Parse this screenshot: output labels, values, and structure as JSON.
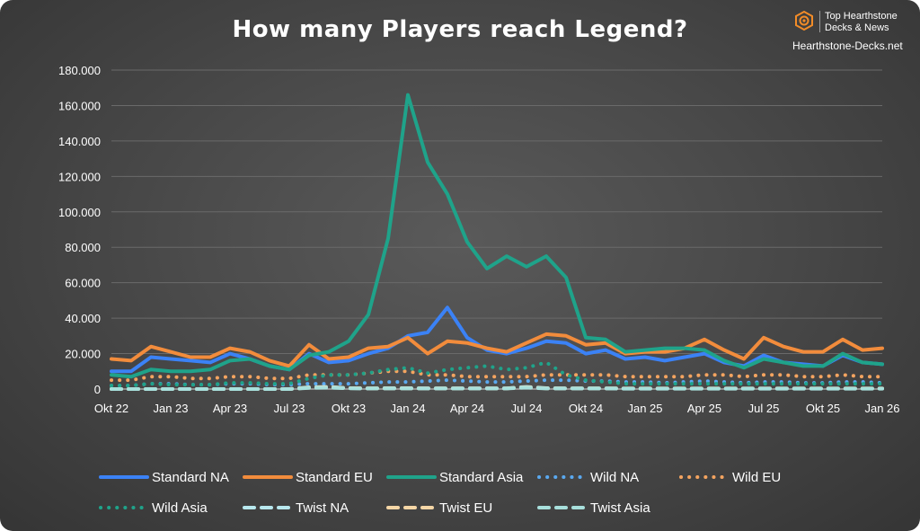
{
  "brand": {
    "line1": "Top Hearthstone",
    "line2": "Decks & News",
    "url": "Hearthstone-Decks.net",
    "icon": "hearthstone-logo-icon",
    "accent": "#f28c28"
  },
  "chart_data": {
    "type": "line",
    "title": "How many Players reach Legend?",
    "xlabel": "",
    "ylabel": "",
    "ylim": [
      0,
      180000
    ],
    "yticks": [
      0,
      20000,
      40000,
      60000,
      80000,
      100000,
      120000,
      140000,
      160000,
      180000
    ],
    "ytick_labels": [
      "0",
      "20.000",
      "40.000",
      "60.000",
      "80.000",
      "100.000",
      "120.000",
      "140.000",
      "160.000",
      "180.000"
    ],
    "x": [
      "Okt 22",
      "Nov 22",
      "Dez 22",
      "Jan 23",
      "Feb 23",
      "Mär 23",
      "Apr 23",
      "Mai 23",
      "Jun 23",
      "Jul 23",
      "Aug 23",
      "Sep 23",
      "Okt 23",
      "Nov 23",
      "Dez 23",
      "Jan 24",
      "Feb 24",
      "Mär 24",
      "Apr 24",
      "Mai 24",
      "Jun 24",
      "Jul 24",
      "Aug 24",
      "Sep 24",
      "Okt 24",
      "Nov 24",
      "Dez 24",
      "Jan 25",
      "Feb 25",
      "Mär 25",
      "Apr 25",
      "Mai 25",
      "Jun 25",
      "Jul 25",
      "Aug 25",
      "Sep 25",
      "Okt 25",
      "Nov 25",
      "Dez 25",
      "Jan 26"
    ],
    "xtick_labels": [
      {
        "index": 0,
        "label": "Okt 22"
      },
      {
        "index": 3,
        "label": "Jan 23"
      },
      {
        "index": 6,
        "label": "Apr 23"
      },
      {
        "index": 9,
        "label": "Jul 23"
      },
      {
        "index": 12,
        "label": "Okt 23"
      },
      {
        "index": 15,
        "label": "Jan 24"
      },
      {
        "index": 18,
        "label": "Apr 24"
      },
      {
        "index": 21,
        "label": "Jul 24"
      },
      {
        "index": 24,
        "label": "Okt 24"
      },
      {
        "index": 27,
        "label": "Jan 25"
      },
      {
        "index": 30,
        "label": "Apr 25"
      },
      {
        "index": 33,
        "label": "Jul 25"
      },
      {
        "index": 36,
        "label": "Okt 25"
      },
      {
        "index": 39,
        "label": "Jan 26"
      }
    ],
    "grid": true,
    "legend_position": "bottom",
    "series": [
      {
        "name": "Standard NA",
        "color": "#3b82f6",
        "style": "solid",
        "values": [
          10000,
          10000,
          18000,
          17000,
          16000,
          15000,
          20000,
          17000,
          13000,
          11000,
          20000,
          15000,
          16000,
          20000,
          23000,
          30000,
          32000,
          46000,
          29000,
          22000,
          20000,
          23000,
          27000,
          26000,
          20000,
          22000,
          17000,
          18000,
          16000,
          18000,
          20000,
          15000,
          13000,
          19000,
          15000,
          14000,
          13000,
          19000,
          15000,
          14000
        ]
      },
      {
        "name": "Standard EU",
        "color": "#f28c3c",
        "style": "solid",
        "values": [
          17000,
          16000,
          24000,
          21000,
          18000,
          18000,
          23000,
          21000,
          16000,
          13000,
          25000,
          17000,
          18000,
          23000,
          24000,
          29000,
          20000,
          27000,
          26000,
          23000,
          21000,
          26000,
          31000,
          30000,
          25000,
          26000,
          20000,
          21000,
          21000,
          23000,
          28000,
          22000,
          17000,
          29000,
          24000,
          21000,
          21000,
          28000,
          22000,
          23000
        ]
      },
      {
        "name": "Standard Asia",
        "color": "#1fa38a",
        "style": "solid",
        "values": [
          8000,
          7000,
          11000,
          10000,
          10000,
          11000,
          16000,
          17000,
          13000,
          11000,
          19000,
          21000,
          27000,
          42000,
          85000,
          166000,
          128000,
          110000,
          83000,
          68000,
          75000,
          69000,
          75000,
          63000,
          29000,
          28000,
          21000,
          22000,
          23000,
          23000,
          22000,
          16000,
          12000,
          17000,
          15000,
          13000,
          13000,
          20000,
          15000,
          14000
        ]
      },
      {
        "name": "Wild NA",
        "color": "#5aa9f0",
        "style": "dotted",
        "values": [
          2000,
          2000,
          3000,
          3000,
          2500,
          2500,
          3000,
          3000,
          2500,
          2500,
          3000,
          3000,
          3000,
          3500,
          4000,
          4000,
          4500,
          5000,
          4500,
          4000,
          4000,
          4500,
          5000,
          5000,
          4500,
          4500,
          4000,
          4000,
          3500,
          4000,
          4500,
          4000,
          3500,
          4000,
          4000,
          3500,
          3500,
          4000,
          4000,
          3500
        ]
      },
      {
        "name": "Wild EU",
        "color": "#f4a460",
        "style": "dotted",
        "values": [
          5000,
          5000,
          7000,
          7000,
          6000,
          6000,
          7000,
          7000,
          6000,
          6000,
          8000,
          8000,
          8000,
          9000,
          10000,
          10000,
          8000,
          8000,
          7000,
          7000,
          7000,
          7000,
          8000,
          8000,
          8000,
          8000,
          7000,
          7000,
          7000,
          7000,
          8000,
          8000,
          7000,
          8000,
          8000,
          7000,
          7000,
          8000,
          7000,
          7000
        ]
      },
      {
        "name": "Wild Asia",
        "color": "#1fa38a",
        "style": "dotted",
        "values": [
          2000,
          2000,
          3000,
          2500,
          2500,
          2500,
          3500,
          3500,
          3000,
          3000,
          6000,
          8000,
          8000,
          9000,
          11000,
          12000,
          9000,
          11000,
          12000,
          13000,
          11000,
          12000,
          15000,
          8000,
          5000,
          4000,
          3000,
          3000,
          3000,
          3000,
          3000,
          3000,
          3000,
          3000,
          3000,
          3000,
          3000,
          3000,
          3000,
          3000
        ]
      },
      {
        "name": "Twist NA",
        "color": "#b8e8ee",
        "style": "dashed",
        "values": [
          0,
          0,
          0,
          0,
          0,
          0,
          0,
          0,
          0,
          0,
          1000,
          1200,
          500,
          400,
          500,
          500,
          400,
          400,
          400,
          400,
          400,
          1200,
          500,
          400,
          400,
          400,
          300,
          300,
          300,
          300,
          300,
          300,
          300,
          300,
          300,
          300,
          300,
          300,
          300,
          300
        ]
      },
      {
        "name": "Twist EU",
        "color": "#f5d6a6",
        "style": "dashed",
        "values": [
          0,
          0,
          0,
          0,
          0,
          0,
          0,
          0,
          0,
          0,
          800,
          1000,
          500,
          400,
          400,
          400,
          400,
          400,
          400,
          400,
          400,
          1000,
          400,
          400,
          400,
          400,
          300,
          300,
          300,
          300,
          300,
          300,
          300,
          300,
          300,
          300,
          300,
          300,
          300,
          300
        ]
      },
      {
        "name": "Twist Asia",
        "color": "#a8e0dc",
        "style": "dashed",
        "values": [
          0,
          0,
          0,
          0,
          0,
          0,
          0,
          0,
          0,
          0,
          600,
          800,
          400,
          300,
          300,
          300,
          300,
          300,
          300,
          300,
          300,
          800,
          300,
          300,
          300,
          300,
          200,
          200,
          200,
          200,
          200,
          200,
          200,
          200,
          200,
          200,
          200,
          200,
          200,
          200
        ]
      }
    ]
  }
}
